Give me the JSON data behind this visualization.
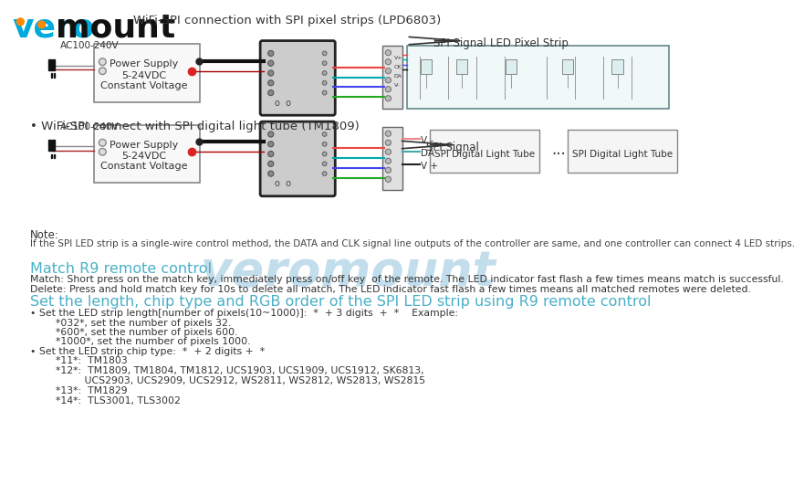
{
  "bg_color": "#ffffff",
  "section_heading_color": "#4ab0c8",
  "body_text_color": "#333333",
  "watermark_color": "#b8d8e8",
  "note_heading": "Note:",
  "note_text": "If the SPI LED strip is a single-wire control method, the DATA and CLK signal line outputs of the controller are same, and one controller can connect 4 LED strips.",
  "match_heading": "Match R9 remote control",
  "match_text1": "Match: Short press on the match key, immediately press on/off key  of the remote. The LED indicator fast flash a few times means match is successful.",
  "match_text2": "Delete: Press and hold match key for 10s to delete all match, The LED indicator fast flash a few times means all matched remotes were deleted.",
  "set_heading": "Set the length, chip type and RGB order of the SPI LED strip using R9 remote control",
  "set_bullet1": "• Set the LED strip length[number of pixels(10~1000)]:  *  + 3 digits  +  *    Example:",
  "set_sub1a": "    *032*, set the number of pixels 32.",
  "set_sub1b": "    *600*, set the number of pixels 600.",
  "set_sub1c": "    *1000*, set the number of pixels 1000.",
  "set_bullet2": "• Set the LED strip chip type:  *  + 2 digits +  *",
  "set_sub2a": "    *11*:  TM1803",
  "set_sub2b": "    *12*:  TM1809, TM1804, TM1812, UCS1903, UCS1909, UCS1912, SK6813,",
  "set_sub2b2": "             UCS2903, UCS2909, UCS2912, WS2811, WS2812, WS2813, WS2815",
  "set_sub2c": "    *13*:  TM1829",
  "set_sub2d": "    *14*:  TLS3001, TLS3002"
}
